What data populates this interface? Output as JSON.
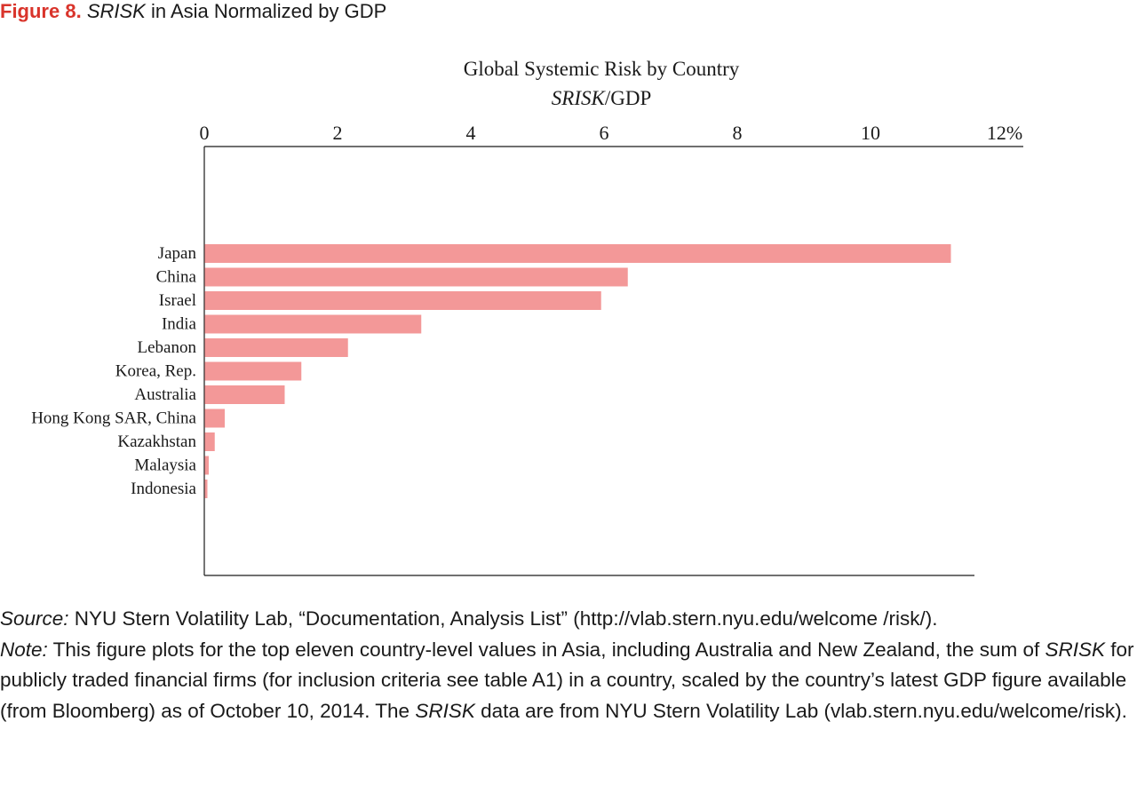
{
  "figure": {
    "label": "Figure 8.",
    "title_italic": "SRISK",
    "title_rest": " in Asia Normalized by GDP"
  },
  "chart_data": {
    "type": "bar",
    "orientation": "horizontal",
    "title": "Global Systemic Risk by Country",
    "subtitle_italic": "SRISK",
    "subtitle_rest": "/GDP",
    "x_ticks": [
      "0",
      "2",
      "4",
      "6",
      "8",
      "10",
      "12%"
    ],
    "xlim": [
      0,
      12
    ],
    "axis_position": "top",
    "grid": false,
    "categories": [
      "Japan",
      "China",
      "Israel",
      "India",
      "Lebanon",
      "Korea, Rep.",
      "Australia",
      "Hong Kong SAR, China",
      "Kazakhstan",
      "Malaysia",
      "Indonesia"
    ],
    "values": [
      11.2,
      6.35,
      5.95,
      3.25,
      2.15,
      1.45,
      1.2,
      0.3,
      0.15,
      0.06,
      0.04
    ],
    "bar_color": "#f39898"
  },
  "source": {
    "label": "Source:",
    "text": " NYU Stern Volatility Lab, “Documentation, Analysis List” (http://vlab.stern.nyu.edu/welcome /risk/)."
  },
  "note": {
    "label": "Note:",
    "part1": " This figure plots for the top eleven country-level values in Asia, including Australia and New Zealand, the sum of ",
    "term1": "SRISK",
    "part2": " for publicly traded financial firms (for inclusion criteria see table A1) in a country, scaled by the country’s latest GDP figure available (from Bloomberg) as of October 10, 2014. The ",
    "term2": "SRISK",
    "part3": " data are from NYU Stern Volatility Lab (vlab.stern.nyu.edu/welcome/risk)."
  }
}
